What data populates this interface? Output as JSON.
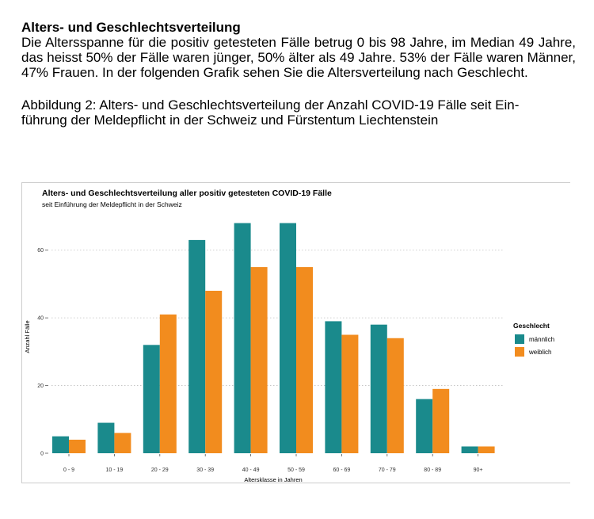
{
  "document": {
    "heading": "Alters- und Geschlechtsverteilung",
    "paragraph": "Die Altersspanne für die positiv getesteten Fälle betrug 0 bis 98 Jahre, im Median 49 Jahre, das heisst 50% der Fälle waren jünger, 50% älter als 49 Jahre. 53% der Fälle waren Männer, 47% Frauen. In der folgenden Grafik sehen Sie die Altersverteilung nach Geschlecht.",
    "caption_line1": "Abbildung 2: Alters- und Geschlechtsverteilung der Anzahl COVID-19 Fälle seit Ein-",
    "caption_line2": "führung der Meldepflicht in der Schweiz und Fürstentum Liechtenstein"
  },
  "chart_data": {
    "type": "bar",
    "title": "Alters- und Geschlechtsverteilung aller positiv getesteten COVID-19 Fälle",
    "subtitle": "seit Einführung der Meldepflicht in der Schweiz",
    "xlabel": "Altersklasse in Jahren",
    "ylabel": "Anzahl Fälle",
    "categories": [
      "0 - 9",
      "10 - 19",
      "20 - 29",
      "30 - 39",
      "40 - 49",
      "50 - 59",
      "60 - 69",
      "70 - 79",
      "80 - 89",
      "90+"
    ],
    "series": [
      {
        "name": "männlich",
        "color": "#1a8a8c",
        "values": [
          5,
          9,
          32,
          63,
          68,
          68,
          39,
          38,
          16,
          2
        ]
      },
      {
        "name": "weiblich",
        "color": "#f28c1e",
        "values": [
          4,
          6,
          41,
          48,
          55,
          55,
          35,
          34,
          19,
          2
        ]
      }
    ],
    "ylim": [
      0,
      70
    ],
    "yticks": [
      0,
      20,
      40,
      60
    ],
    "legend_title": "Geschlecht",
    "legend_position": "right",
    "grid": "horizontal-dotted"
  }
}
